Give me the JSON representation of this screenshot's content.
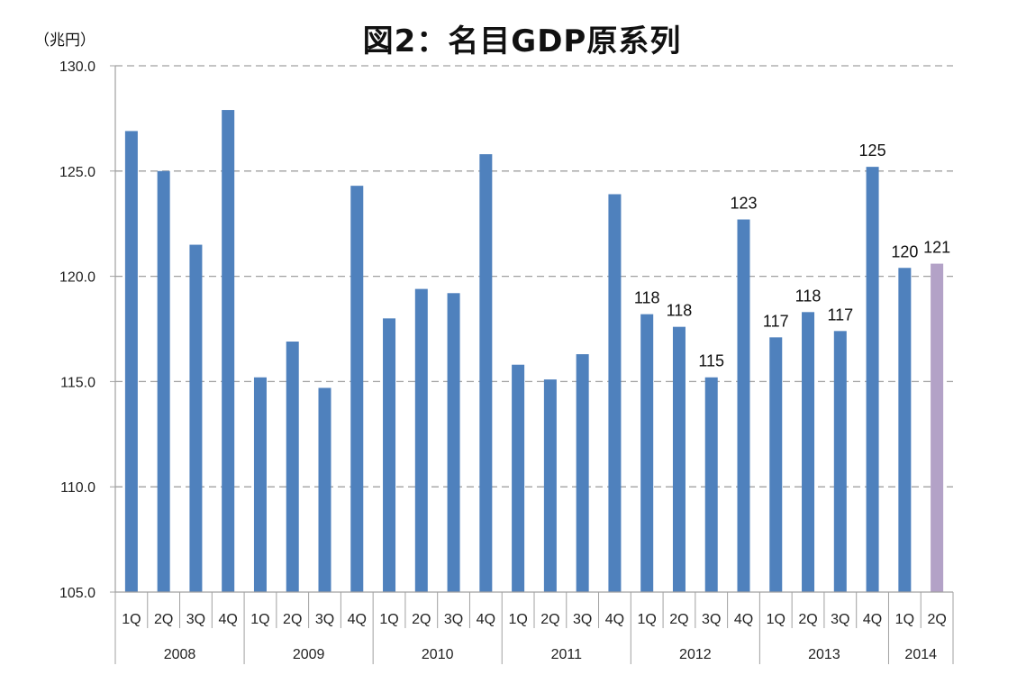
{
  "title": "図2：名目GDP原系列",
  "unit_label": "（兆円）",
  "colors": {
    "bar": "#4F81BD",
    "bar_highlight": "#B3A2C7",
    "grid": "#A0A0A0",
    "axis": "#A0A0A0"
  },
  "chart_data": {
    "type": "bar",
    "title": "図2：名目GDP原系列",
    "xlabel": "",
    "ylabel": "（兆円）",
    "ylim": [
      105.0,
      130.0
    ],
    "yticks": [
      "105.0",
      "110.0",
      "115.0",
      "120.0",
      "125.0",
      "130.0"
    ],
    "grid": true,
    "legend": null,
    "year_groups": [
      {
        "year": "2008",
        "quarters": [
          "1Q",
          "2Q",
          "3Q",
          "4Q"
        ]
      },
      {
        "year": "2009",
        "quarters": [
          "1Q",
          "2Q",
          "3Q",
          "4Q"
        ]
      },
      {
        "year": "2010",
        "quarters": [
          "1Q",
          "2Q",
          "3Q",
          "4Q"
        ]
      },
      {
        "year": "2011",
        "quarters": [
          "1Q",
          "2Q",
          "3Q",
          "4Q"
        ]
      },
      {
        "year": "2012",
        "quarters": [
          "1Q",
          "2Q",
          "3Q",
          "4Q"
        ]
      },
      {
        "year": "2013",
        "quarters": [
          "1Q",
          "2Q",
          "3Q",
          "4Q"
        ]
      },
      {
        "year": "2014",
        "quarters": [
          "1Q",
          "2Q"
        ]
      }
    ],
    "categories": [
      "2008 1Q",
      "2008 2Q",
      "2008 3Q",
      "2008 4Q",
      "2009 1Q",
      "2009 2Q",
      "2009 3Q",
      "2009 4Q",
      "2010 1Q",
      "2010 2Q",
      "2010 3Q",
      "2010 4Q",
      "2011 1Q",
      "2011 2Q",
      "2011 3Q",
      "2011 4Q",
      "2012 1Q",
      "2012 2Q",
      "2012 3Q",
      "2012 4Q",
      "2013 1Q",
      "2013 2Q",
      "2013 3Q",
      "2013 4Q",
      "2014 1Q",
      "2014 2Q"
    ],
    "values": [
      126.9,
      125.0,
      121.5,
      127.9,
      115.2,
      116.9,
      114.7,
      124.3,
      118.0,
      119.4,
      119.2,
      125.8,
      115.8,
      115.1,
      116.3,
      123.9,
      118.2,
      117.6,
      115.2,
      122.7,
      117.1,
      118.3,
      117.4,
      125.2,
      120.4,
      120.6
    ],
    "data_labels": [
      null,
      null,
      null,
      null,
      null,
      null,
      null,
      null,
      null,
      null,
      null,
      null,
      null,
      null,
      null,
      null,
      "118",
      "118",
      "115",
      "123",
      "117",
      "118",
      "117",
      "125",
      "120",
      "121"
    ],
    "highlight_index": 25
  }
}
